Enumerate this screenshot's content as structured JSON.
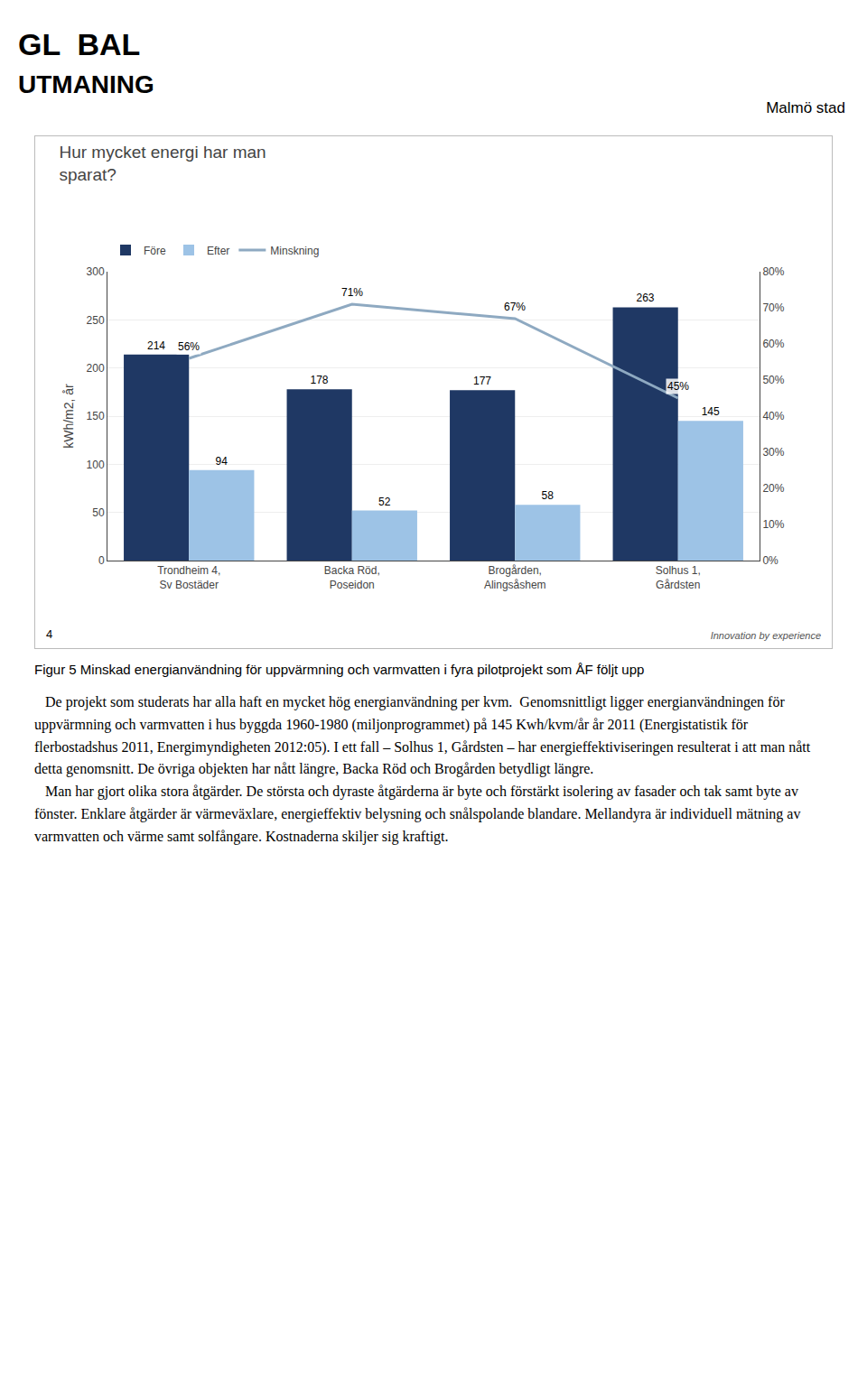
{
  "chart_data": {
    "type": "bar",
    "title": "Hur mycket energi har man\nsparat?",
    "ylabel": "kWh/m2, år",
    "categories": [
      "Trondheim 4,\nSv Bostäder",
      "Backa Röd,\nPoseidon",
      "Brogården,\nAlingsåshem",
      "Solhus 1,\nGårdsten"
    ],
    "series": [
      {
        "name": "Före",
        "color": "#1F3864",
        "values": [
          214,
          178,
          177,
          263
        ]
      },
      {
        "name": "Efter",
        "color": "#9DC3E6",
        "values": [
          94,
          52,
          58,
          145
        ]
      },
      {
        "name": "Minskning",
        "type": "line",
        "axis": "y2",
        "color": "#8EA9C1",
        "values": [
          0.56,
          0.71,
          0.67,
          0.45
        ],
        "value_labels": [
          "56%",
          "71%",
          "67%",
          "45%"
        ]
      }
    ],
    "ylim": [
      0,
      300
    ],
    "yticks": [
      0,
      50,
      100,
      150,
      200,
      250,
      300
    ],
    "y2lim": [
      0,
      0.8
    ],
    "y2ticks": [
      {
        "value": 0.0,
        "label": "0%"
      },
      {
        "value": 0.1,
        "label": "10%"
      },
      {
        "value": 0.2,
        "label": "20%"
      },
      {
        "value": 0.3,
        "label": "30%"
      },
      {
        "value": 0.4,
        "label": "40%"
      },
      {
        "value": 0.5,
        "label": "50%"
      },
      {
        "value": 0.6,
        "label": "60%"
      },
      {
        "value": 0.7,
        "label": "70%"
      },
      {
        "value": 0.8,
        "label": "80%"
      }
    ],
    "grid": true,
    "legend": "top",
    "data_labels": true,
    "annotations": [
      "GL  BAL",
      "UTMANING",
      "Malmö stad",
      "4",
      "Innovation by experience",
      "Figur 5  Minskad energianvändning för uppvärmning och varmvatten i fyra pilotprojekt som ÅF följt upp",
      "   De projekt som studerats har alla haft en mycket hög energianvändning per kvm.  Genomsnittligt ligger energianvändningen för uppvärmning och varmvatten i hus byggda 1960-1980 (miljonprogrammet) på 145 Kwh/kvm/år år 2011 (Energistatistik för flerbostadshus 2011, Energimyndigheten 2012:05). I ett fall – Solhus 1, Gårdsten – har energieffektiviseringen resulterat i att man nått detta genomsnitt. De övriga objekten har nått längre, Backa Röd och Brogården betydligt längre.",
      "   Man har gjort olika stora åtgärder. De största och dyraste åtgärderna är byte och förstärkt isolering av fasader och tak samt byte av fönster. Enklare åtgärder är värmeväxlare, energieffektiv belysning och snålspolande blandare. Mellandyra är individuell mätning av varmvatten och värme samt solfångare. Kostnaderna skiljer sig kraftigt."
    ]
  }
}
